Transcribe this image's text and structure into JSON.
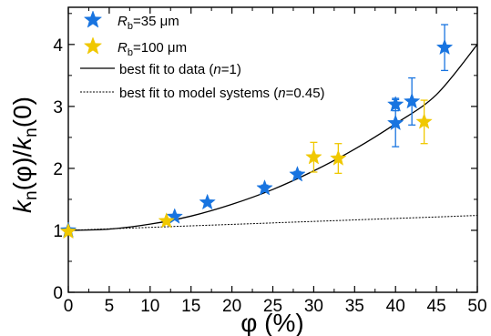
{
  "chart_data": {
    "type": "scatter",
    "xlabel": "φ (%)",
    "ylabel": "kn(φ)/kn(0)",
    "xlim": [
      0,
      50
    ],
    "ylim": [
      0,
      4.6
    ],
    "x_ticks": [
      0,
      5,
      10,
      15,
      20,
      25,
      30,
      35,
      40,
      45,
      50
    ],
    "y_ticks": [
      0,
      1,
      2,
      3,
      4
    ],
    "grid": false,
    "legend_position": "top-left",
    "series": [
      {
        "name": "Rb=35 μm",
        "name_parts": {
          "base": "R",
          "sub": "b",
          "rest": "=35 μm"
        },
        "kind": "points",
        "marker": "star",
        "color": "#1874e0",
        "x": [
          0,
          13,
          17,
          24,
          28,
          40,
          40,
          42,
          46
        ],
        "y": [
          1.0,
          1.22,
          1.45,
          1.68,
          1.9,
          3.03,
          2.73,
          3.08,
          3.95
        ],
        "err": [
          0,
          0,
          0,
          0.05,
          0.05,
          0.1,
          0.38,
          0.38,
          0.37
        ]
      },
      {
        "name": "Rb=100 μm",
        "name_parts": {
          "base": "R",
          "sub": "b",
          "rest": "=100 μm"
        },
        "kind": "points",
        "marker": "star",
        "color": "#f0c800",
        "x": [
          0,
          12,
          30,
          33,
          43.5
        ],
        "y": [
          0.98,
          1.15,
          2.18,
          2.16,
          2.75
        ],
        "err": [
          0,
          0,
          0.24,
          0.24,
          0.35
        ]
      },
      {
        "name": "best fit to data (n=1)",
        "name_parts": {
          "base": "best fit to data (",
          "italic": "n",
          "rest": "=1)"
        },
        "kind": "line",
        "dash": "solid",
        "color": "#000000",
        "x": [
          0,
          5,
          10,
          15,
          20,
          25,
          30,
          35,
          40,
          45,
          50
        ],
        "y": [
          1.0,
          1.02,
          1.1,
          1.23,
          1.42,
          1.66,
          1.96,
          2.31,
          2.72,
          3.19,
          4.0
        ]
      },
      {
        "name": "best fit to model systems (n=0.45)",
        "name_parts": {
          "base": "best fit to model systems (",
          "italic": "n",
          "rest": "=0.45)"
        },
        "kind": "line",
        "dash": "dotted",
        "color": "#000000",
        "x": [
          0,
          50
        ],
        "y": [
          1.0,
          1.24
        ]
      }
    ]
  }
}
